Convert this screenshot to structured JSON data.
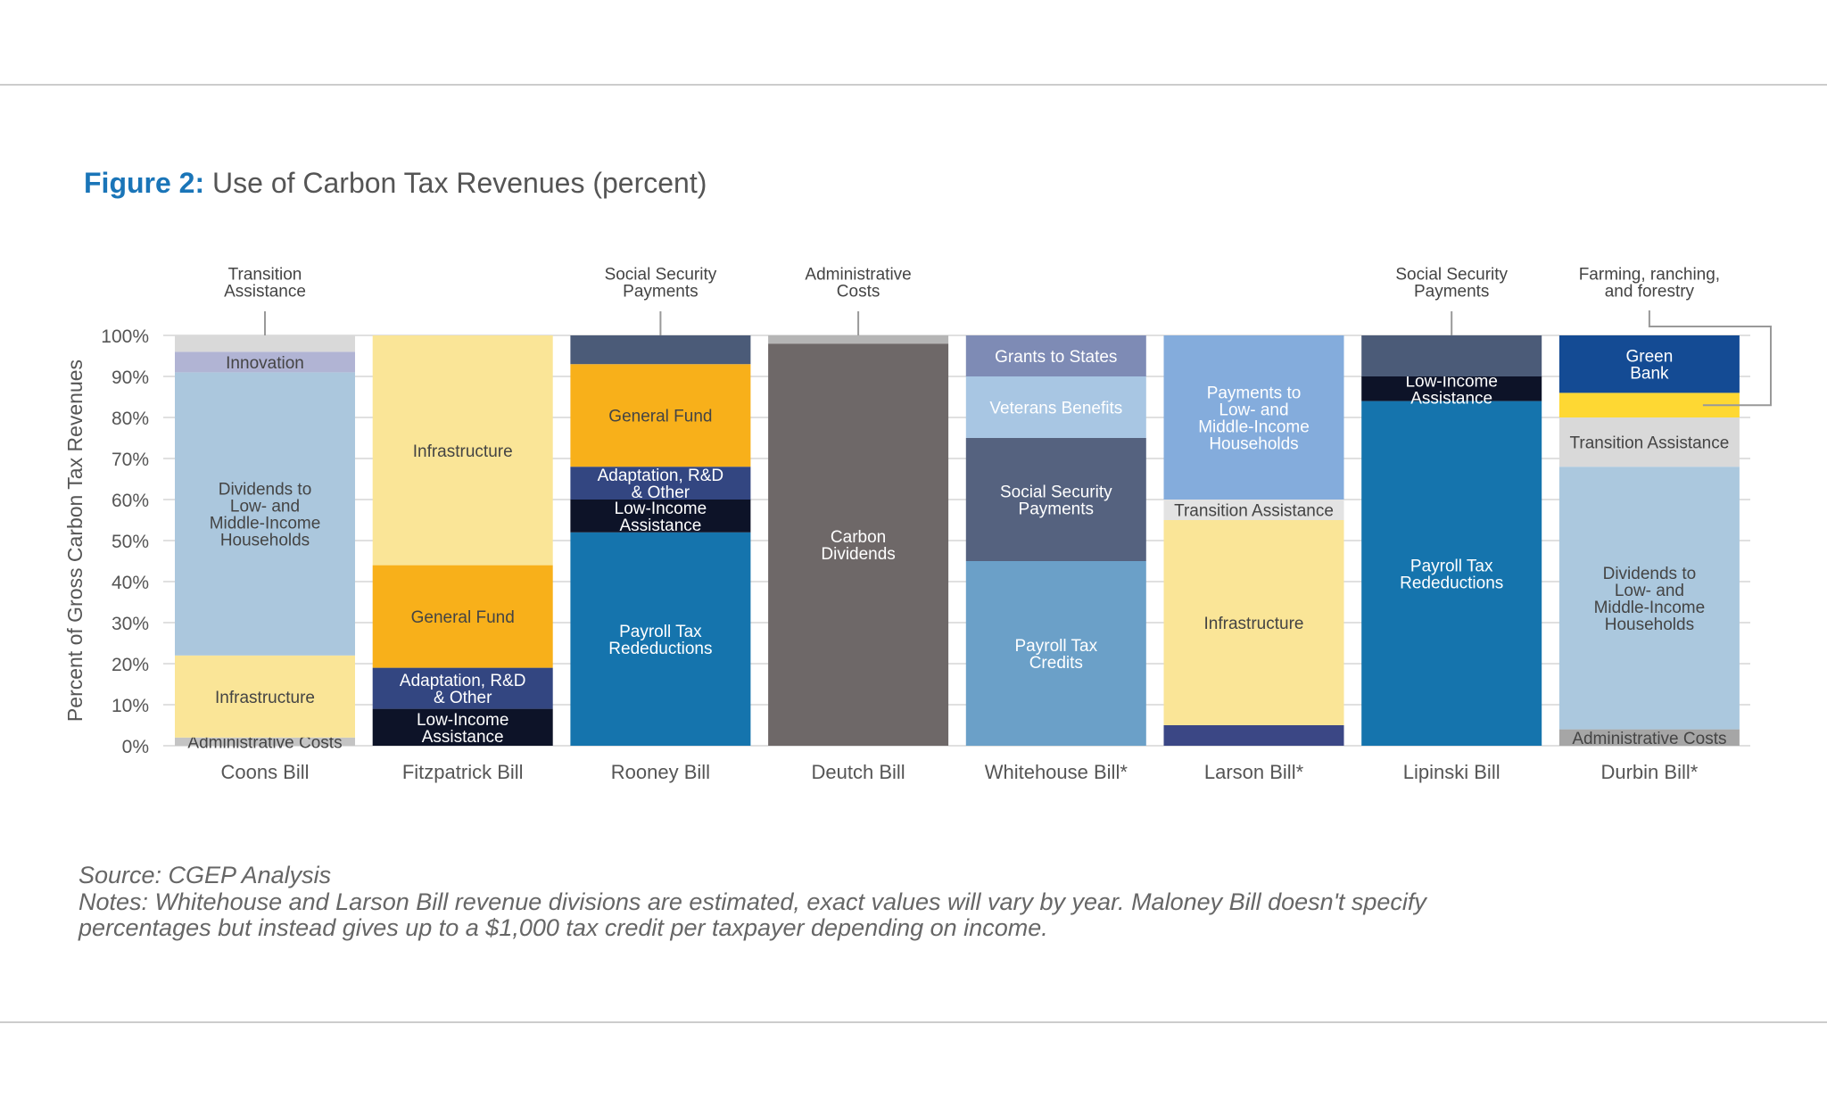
{
  "figure": {
    "title_prefix": "Figure 2:",
    "title_text": " Use of Carbon Tax Revenues (percent)",
    "source": "Source: CGEP Analysis",
    "notes_line1": "Notes: Whitehouse and Larson Bill revenue divisions are estimated, exact values will vary by year. Maloney Bill doesn't specify",
    "notes_line2": "percentages but instead gives up to a $1,000 tax credit per taxpayer depending on income."
  },
  "chart_data": {
    "type": "bar",
    "stacked": true,
    "title": "Figure 2: Use of Carbon Tax Revenues (percent)",
    "ylabel": "Percent of Gross Carbon Tax Revenues",
    "xlabel": "",
    "ylim": [
      0,
      100
    ],
    "yticks": [
      "0%",
      "10%",
      "20%",
      "30%",
      "40%",
      "50%",
      "60%",
      "70%",
      "80%",
      "90%",
      "100%"
    ],
    "grid": true,
    "categories": [
      "Coons Bill",
      "Fitzpatrick Bill",
      "Rooney Bill",
      "Deutch Bill",
      "Whitehouse Bill*",
      "Larson Bill*",
      "Lipinski Bill",
      "Durbin Bill*"
    ],
    "bars": [
      {
        "name": "Coons Bill",
        "segments": [
          {
            "label": "Administrative Costs",
            "value": 2,
            "color": "#c4c4c4",
            "text_color": "#444444"
          },
          {
            "label": "Infrastructure",
            "value": 20,
            "color": "#fae597",
            "text_color": "#444444"
          },
          {
            "label": "Dividends to\nLow- and\nMiddle-Income\nHouseholds",
            "value": 69,
            "color": "#abc7dd",
            "text_color": "#444444"
          },
          {
            "label": "Innovation",
            "value": 5,
            "color": "#b1b4d4",
            "text_color": "#444444"
          },
          {
            "label": "",
            "value": 4,
            "color": "#d9d9d9",
            "text_color": "#444444"
          }
        ]
      },
      {
        "name": "Fitzpatrick Bill",
        "segments": [
          {
            "label": "Low-Income\nAssistance",
            "value": 9,
            "color": "#0d1328",
            "text_color": "#ffffff"
          },
          {
            "label": "Adaptation, R&D\n& Other",
            "value": 10,
            "color": "#334681",
            "text_color": "#ffffff"
          },
          {
            "label": "General Fund",
            "value": 25,
            "color": "#f8b01a",
            "text_color": "#444444"
          },
          {
            "label": "Infrastructure",
            "value": 56,
            "color": "#fae597",
            "text_color": "#444444"
          }
        ]
      },
      {
        "name": "Rooney Bill",
        "segments": [
          {
            "label": "Payroll Tax\nRedeductions",
            "value": 52,
            "color": "#1574ad",
            "text_color": "#ffffff"
          },
          {
            "label": "Low-Income\nAssistance",
            "value": 8,
            "color": "#0d1328",
            "text_color": "#ffffff"
          },
          {
            "label": "Adaptation, R&D\n& Other",
            "value": 8,
            "color": "#334681",
            "text_color": "#ffffff"
          },
          {
            "label": "General Fund",
            "value": 25,
            "color": "#f8b01a",
            "text_color": "#444444"
          },
          {
            "label": "",
            "value": 7,
            "color": "#4b5b78",
            "text_color": "#ffffff"
          }
        ]
      },
      {
        "name": "Deutch Bill",
        "segments": [
          {
            "label": "Carbon\nDividends",
            "value": 98,
            "color": "#6e6868",
            "text_color": "#ffffff"
          },
          {
            "label": "",
            "value": 2,
            "color": "#b5b5b5",
            "text_color": "#444444"
          }
        ]
      },
      {
        "name": "Whitehouse Bill*",
        "segments": [
          {
            "label": "Payroll Tax\nCredits",
            "value": 45,
            "color": "#6ba0c8",
            "text_color": "#ffffff"
          },
          {
            "label": "Social Security\nPayments",
            "value": 30,
            "color": "#55627f",
            "text_color": "#ffffff"
          },
          {
            "label": "Veterans Benefits",
            "value": 15,
            "color": "#a8c6e3",
            "text_color": "#ffffff"
          },
          {
            "label": "Grants to States",
            "value": 10,
            "color": "#7e8bb5",
            "text_color": "#ffffff"
          }
        ]
      },
      {
        "name": "Larson Bill*",
        "segments": [
          {
            "label": "",
            "value": 5,
            "color": "#3b4785",
            "text_color": "#ffffff"
          },
          {
            "label": "Infrastructure",
            "value": 50,
            "color": "#fae597",
            "text_color": "#444444"
          },
          {
            "label": "Transition Assistance",
            "value": 5,
            "color": "#e3e3e3",
            "text_color": "#444444"
          },
          {
            "label": "Payments to\nLow- and\nMiddle-Income\nHouseholds",
            "value": 40,
            "color": "#84acdc",
            "text_color": "#ffffff"
          }
        ]
      },
      {
        "name": "Lipinski Bill",
        "segments": [
          {
            "label": "Payroll Tax\nRedeductions",
            "value": 84,
            "color": "#1574ad",
            "text_color": "#ffffff"
          },
          {
            "label": "Low-Income\nAssistance",
            "value": 6,
            "color": "#0d1328",
            "text_color": "#ffffff"
          },
          {
            "label": "",
            "value": 10,
            "color": "#4b5b78",
            "text_color": "#ffffff"
          }
        ]
      },
      {
        "name": "Durbin Bill*",
        "segments": [
          {
            "label": "Administrative Costs",
            "value": 4,
            "color": "#a6a6a6",
            "text_color": "#444444"
          },
          {
            "label": "Dividends to\nLow- and\nMiddle-Income\nHouseholds",
            "value": 64,
            "color": "#abc8de",
            "text_color": "#444444"
          },
          {
            "label": "Transition Assistance",
            "value": 12,
            "color": "#d9d9d9",
            "text_color": "#444444"
          },
          {
            "label": "",
            "value": 6,
            "color": "#fed833",
            "text_color": "#444444"
          },
          {
            "label": "Green\nBank",
            "value": 14,
            "color": "#144b94",
            "text_color": "#ffffff"
          }
        ]
      }
    ],
    "callouts": [
      {
        "bar": "Coons Bill",
        "label": "Transition\nAssistance"
      },
      {
        "bar": "Rooney Bill",
        "label": "Social Security\nPayments"
      },
      {
        "bar": "Deutch Bill",
        "label": "Administrative\nCosts"
      },
      {
        "bar": "Lipinski Bill",
        "label": "Social Security\nPayments"
      },
      {
        "bar": "Durbin Bill*",
        "label": "Farming, ranching,\nand forestry",
        "elbow": true
      }
    ]
  }
}
